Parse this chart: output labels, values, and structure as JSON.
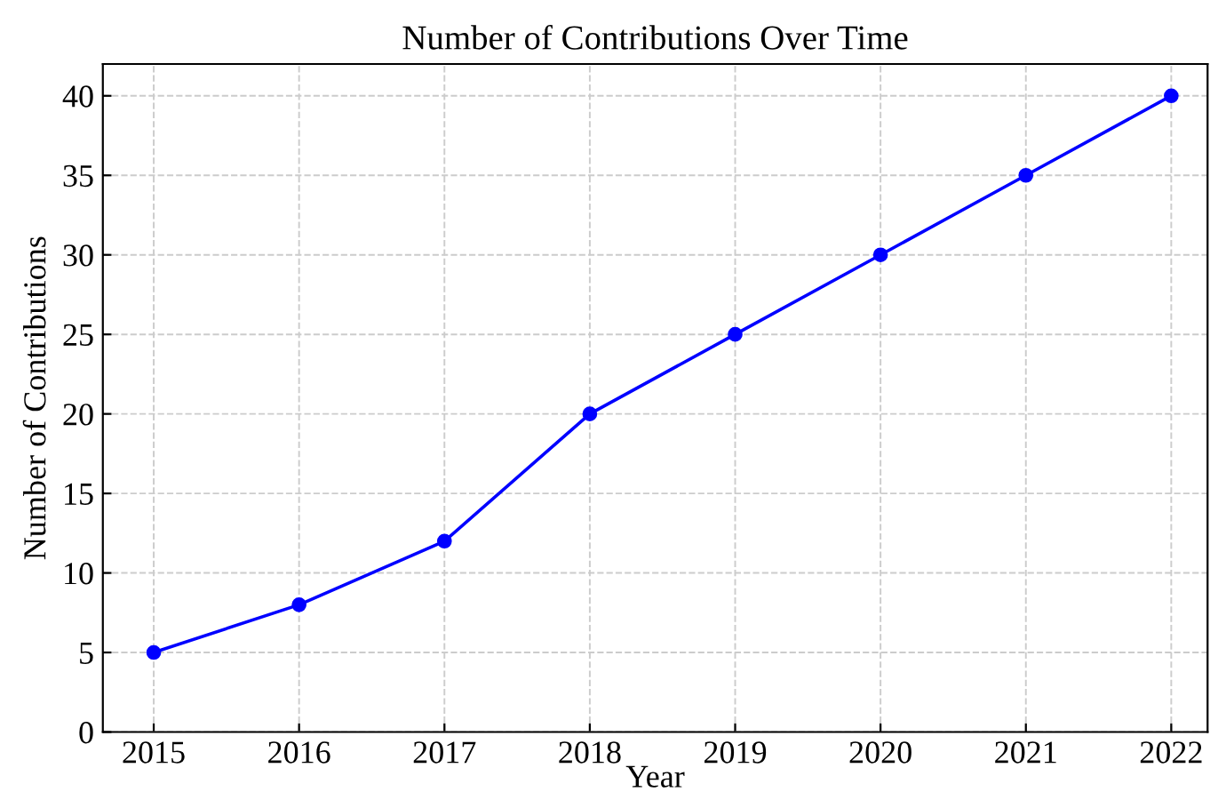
{
  "chart_data": {
    "type": "line",
    "title": "Number of Contributions Over Time",
    "xlabel": "Year",
    "ylabel": "Number of Contributions",
    "x": [
      2015,
      2016,
      2017,
      2018,
      2019,
      2020,
      2021,
      2022
    ],
    "series": [
      {
        "color": "#0000ff",
        "values": [
          5,
          8,
          12,
          20,
          25,
          30,
          35,
          40
        ]
      }
    ],
    "xlim": [
      2014.65,
      2022.25
    ],
    "xticks": [
      2015,
      2016,
      2017,
      2018,
      2019,
      2020,
      2021,
      2022
    ],
    "ylim": [
      0,
      42
    ],
    "yticks": [
      0,
      5,
      10,
      15,
      20,
      25,
      30,
      35,
      40
    ],
    "grid": true,
    "marker": "circle",
    "line_style": "solid",
    "legend": false
  }
}
